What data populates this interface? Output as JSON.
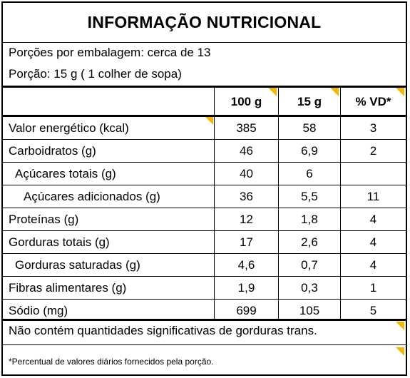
{
  "title": "INFORMAÇÃO NUTRICIONAL",
  "serving": {
    "per_package": "Porções por embalagem: cerca de 13",
    "size": "Porção: 15 g ( 1 colher de sopa)"
  },
  "headers": [
    "100 g",
    "15 g",
    "% VD*"
  ],
  "rows": [
    {
      "label": "Valor energético (kcal)",
      "v100": "385",
      "vportion": "58",
      "vd": "3"
    },
    {
      "label": "Carboidratos (g)",
      "v100": "46",
      "vportion": "6,9",
      "vd": "2"
    },
    {
      "label": "Açúcares totais (g)",
      "v100": "40",
      "vportion": "6",
      "vd": ""
    },
    {
      "label": "Açúcares adicionados (g)",
      "v100": "36",
      "vportion": "5,5",
      "vd": "11"
    },
    {
      "label": "Proteínas (g)",
      "v100": "12",
      "vportion": "1,8",
      "vd": "4"
    },
    {
      "label": "Gorduras totais (g)",
      "v100": "17",
      "vportion": "2,6",
      "vd": "4"
    },
    {
      "label": "Gorduras saturadas (g)",
      "v100": "4,6",
      "vportion": "0,7",
      "vd": "4"
    },
    {
      "label": "Fibras alimentares (g)",
      "v100": "1,9",
      "vportion": "0,3",
      "vd": "1"
    },
    {
      "label": "Sódio (mg)",
      "v100": "699",
      "vportion": "105",
      "vd": "5"
    }
  ],
  "trans_note": "Não contém quantidades significativas de gorduras trans.",
  "footnote": "*Percentual de valores diários fornecidos pela porção.",
  "accent_color": "#f5b800"
}
